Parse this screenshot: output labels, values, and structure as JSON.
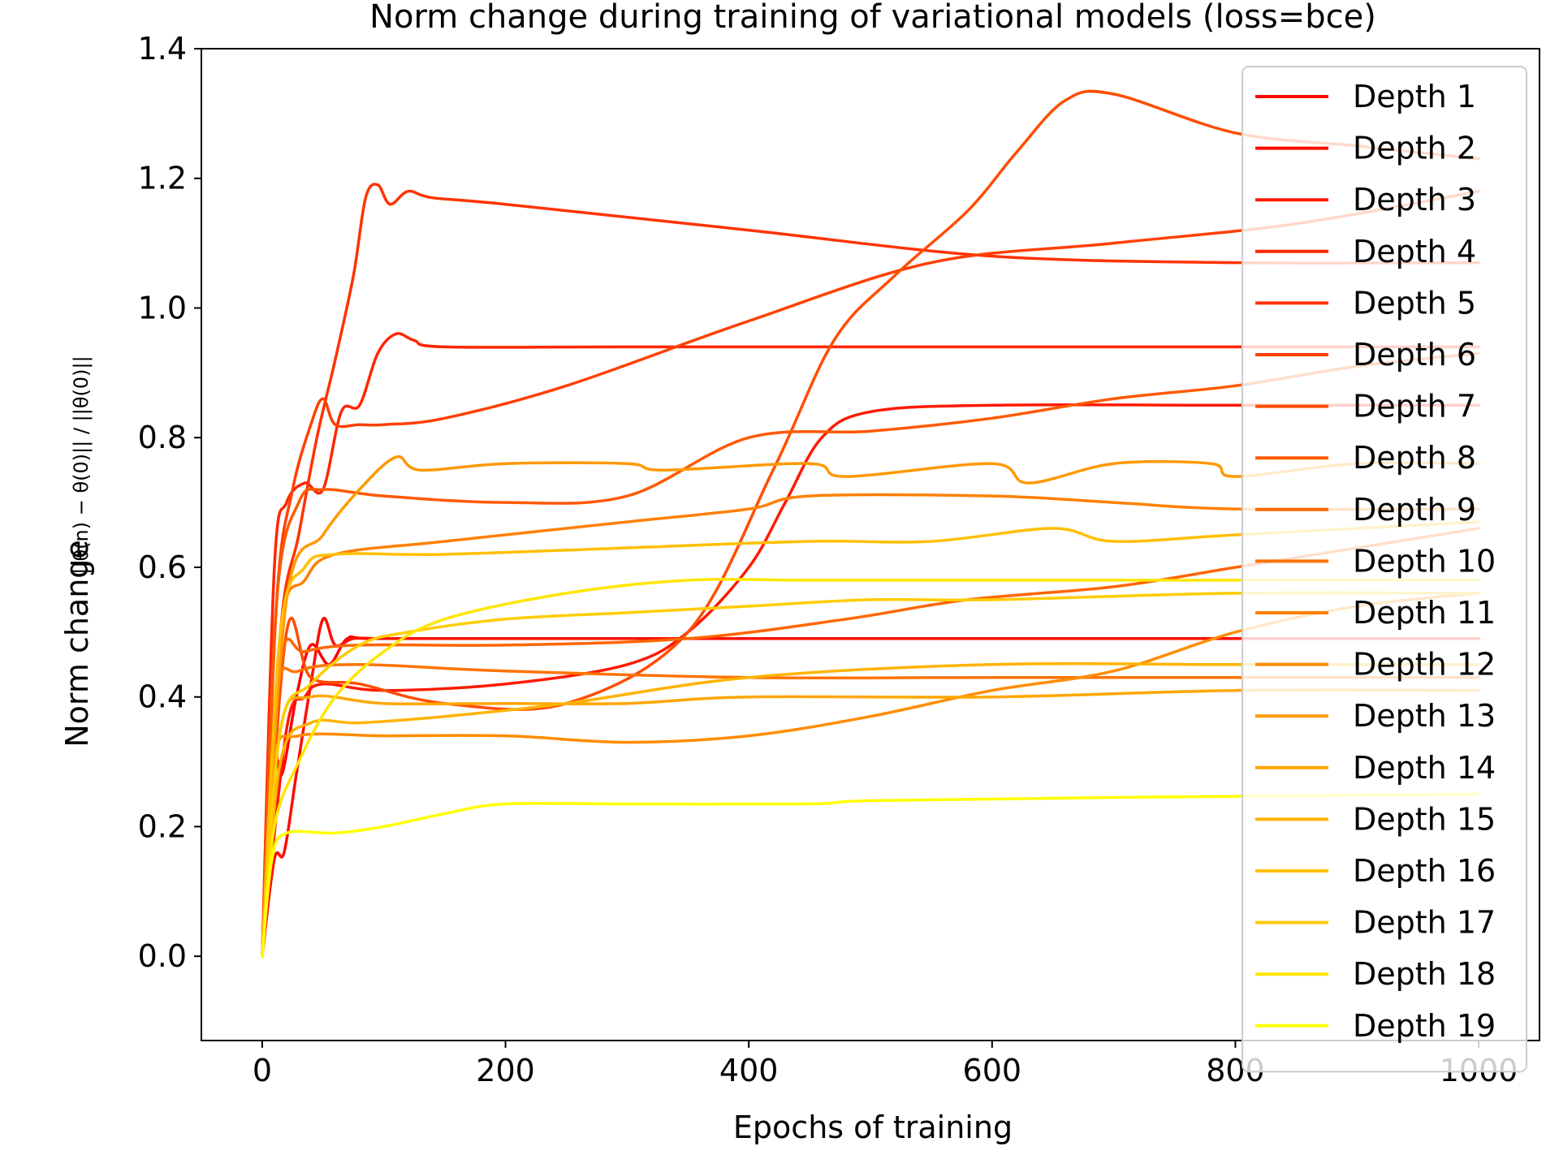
{
  "chart_data": {
    "type": "line",
    "title": "Norm change during training of variational models (loss=bce)",
    "xlabel": "Epochs of training",
    "ylabel": "Norm change",
    "ylabel_formula": "||θ(n) − θ(0)|| / ||θ(0)||",
    "xlim": [
      -50,
      1050
    ],
    "ylim": [
      -0.13,
      1.4
    ],
    "x_ticks": [
      "0",
      "200",
      "400",
      "600",
      "800",
      "1000"
    ],
    "y_ticks": [
      "0.0",
      "0.2",
      "0.4",
      "0.6",
      "0.8",
      "1.0",
      "1.2",
      "1.4"
    ],
    "legend_position": "right",
    "series": [
      {
        "name": "Depth 1",
        "color": "#ff0000",
        "points": [
          [
            0,
            0
          ],
          [
            8,
            0.32
          ],
          [
            16,
            0.28
          ],
          [
            28,
            0.4
          ],
          [
            40,
            0.48
          ],
          [
            55,
            0.45
          ],
          [
            70,
            0.49
          ],
          [
            90,
            0.49
          ],
          [
            200,
            0.49
          ],
          [
            400,
            0.49
          ],
          [
            600,
            0.49
          ],
          [
            800,
            0.49
          ],
          [
            1000,
            0.49
          ]
        ]
      },
      {
        "name": "Depth 2",
        "color": "#ff0d00",
        "points": [
          [
            0,
            0
          ],
          [
            10,
            0.15
          ],
          [
            18,
            0.16
          ],
          [
            28,
            0.28
          ],
          [
            40,
            0.42
          ],
          [
            50,
            0.52
          ],
          [
            60,
            0.48
          ],
          [
            75,
            0.49
          ],
          [
            100,
            0.49
          ],
          [
            150,
            0.49
          ],
          [
            250,
            0.49
          ],
          [
            400,
            0.49
          ],
          [
            600,
            0.49
          ],
          [
            800,
            0.49
          ],
          [
            1000,
            0.49
          ]
        ]
      },
      {
        "name": "Depth 3",
        "color": "#ff1a00",
        "points": [
          [
            0,
            0
          ],
          [
            20,
            0.35
          ],
          [
            35,
            0.4
          ],
          [
            50,
            0.42
          ],
          [
            100,
            0.41
          ],
          [
            200,
            0.42
          ],
          [
            300,
            0.45
          ],
          [
            350,
            0.5
          ],
          [
            400,
            0.6
          ],
          [
            430,
            0.7
          ],
          [
            460,
            0.8
          ],
          [
            500,
            0.84
          ],
          [
            600,
            0.85
          ],
          [
            800,
            0.85
          ],
          [
            1000,
            0.85
          ]
        ]
      },
      {
        "name": "Depth 4",
        "color": "#ff2600",
        "points": [
          [
            0,
            0
          ],
          [
            10,
            0.6
          ],
          [
            20,
            0.7
          ],
          [
            35,
            0.73
          ],
          [
            50,
            0.72
          ],
          [
            65,
            0.84
          ],
          [
            80,
            0.85
          ],
          [
            95,
            0.93
          ],
          [
            110,
            0.96
          ],
          [
            125,
            0.95
          ],
          [
            150,
            0.94
          ],
          [
            300,
            0.94
          ],
          [
            600,
            0.94
          ],
          [
            800,
            0.94
          ],
          [
            1000,
            0.94
          ]
        ]
      },
      {
        "name": "Depth 5",
        "color": "#ff3300",
        "points": [
          [
            0,
            0
          ],
          [
            15,
            0.5
          ],
          [
            30,
            0.65
          ],
          [
            45,
            0.8
          ],
          [
            60,
            0.92
          ],
          [
            75,
            1.05
          ],
          [
            85,
            1.17
          ],
          [
            95,
            1.19
          ],
          [
            105,
            1.16
          ],
          [
            120,
            1.18
          ],
          [
            140,
            1.17
          ],
          [
            200,
            1.16
          ],
          [
            400,
            1.12
          ],
          [
            600,
            1.08
          ],
          [
            800,
            1.07
          ],
          [
            1000,
            1.07
          ]
        ]
      },
      {
        "name": "Depth 6",
        "color": "#ff4000",
        "points": [
          [
            0,
            0
          ],
          [
            12,
            0.55
          ],
          [
            25,
            0.72
          ],
          [
            40,
            0.82
          ],
          [
            50,
            0.86
          ],
          [
            60,
            0.82
          ],
          [
            80,
            0.82
          ],
          [
            100,
            0.82
          ],
          [
            150,
            0.83
          ],
          [
            250,
            0.88
          ],
          [
            400,
            0.98
          ],
          [
            550,
            1.07
          ],
          [
            700,
            1.1
          ],
          [
            850,
            1.13
          ],
          [
            1000,
            1.18
          ]
        ]
      },
      {
        "name": "Depth 7",
        "color": "#ff4d00",
        "points": [
          [
            0,
            0
          ],
          [
            20,
            0.5
          ],
          [
            40,
            0.43
          ],
          [
            80,
            0.42
          ],
          [
            150,
            0.39
          ],
          [
            250,
            0.39
          ],
          [
            350,
            0.5
          ],
          [
            420,
            0.75
          ],
          [
            470,
            0.95
          ],
          [
            520,
            1.05
          ],
          [
            580,
            1.15
          ],
          [
            620,
            1.24
          ],
          [
            660,
            1.32
          ],
          [
            700,
            1.33
          ],
          [
            800,
            1.27
          ],
          [
            900,
            1.25
          ],
          [
            1000,
            1.23
          ]
        ]
      },
      {
        "name": "Depth 8",
        "color": "#ff5900",
        "points": [
          [
            0,
            0
          ],
          [
            12,
            0.55
          ],
          [
            30,
            0.7
          ],
          [
            50,
            0.72
          ],
          [
            100,
            0.71
          ],
          [
            200,
            0.7
          ],
          [
            300,
            0.71
          ],
          [
            400,
            0.8
          ],
          [
            500,
            0.81
          ],
          [
            600,
            0.83
          ],
          [
            700,
            0.86
          ],
          [
            800,
            0.88
          ],
          [
            900,
            0.91
          ],
          [
            1000,
            0.93
          ]
        ]
      },
      {
        "name": "Depth 9",
        "color": "#ff6600",
        "points": [
          [
            0,
            0
          ],
          [
            15,
            0.45
          ],
          [
            35,
            0.47
          ],
          [
            80,
            0.48
          ],
          [
            200,
            0.48
          ],
          [
            350,
            0.49
          ],
          [
            480,
            0.52
          ],
          [
            580,
            0.55
          ],
          [
            700,
            0.57
          ],
          [
            800,
            0.6
          ],
          [
            900,
            0.63
          ],
          [
            1000,
            0.66
          ]
        ]
      },
      {
        "name": "Depth 10",
        "color": "#ff7300",
        "points": [
          [
            0,
            0
          ],
          [
            12,
            0.4
          ],
          [
            30,
            0.44
          ],
          [
            80,
            0.45
          ],
          [
            200,
            0.44
          ],
          [
            400,
            0.43
          ],
          [
            600,
            0.43
          ],
          [
            800,
            0.43
          ],
          [
            1000,
            0.43
          ]
        ]
      },
      {
        "name": "Depth 11",
        "color": "#ff8000",
        "points": [
          [
            0,
            0
          ],
          [
            15,
            0.5
          ],
          [
            35,
            0.58
          ],
          [
            60,
            0.62
          ],
          [
            150,
            0.64
          ],
          [
            300,
            0.67
          ],
          [
            400,
            0.69
          ],
          [
            450,
            0.71
          ],
          [
            600,
            0.71
          ],
          [
            700,
            0.7
          ],
          [
            800,
            0.69
          ],
          [
            1000,
            0.69
          ]
        ]
      },
      {
        "name": "Depth 12",
        "color": "#ff8c00",
        "points": [
          [
            0,
            0
          ],
          [
            10,
            0.3
          ],
          [
            30,
            0.34
          ],
          [
            100,
            0.34
          ],
          [
            200,
            0.34
          ],
          [
            300,
            0.33
          ],
          [
            400,
            0.34
          ],
          [
            500,
            0.37
          ],
          [
            600,
            0.41
          ],
          [
            700,
            0.44
          ],
          [
            800,
            0.5
          ],
          [
            900,
            0.54
          ],
          [
            1000,
            0.56
          ]
        ]
      },
      {
        "name": "Depth 13",
        "color": "#ff9900",
        "points": [
          [
            0,
            0
          ],
          [
            20,
            0.55
          ],
          [
            50,
            0.65
          ],
          [
            80,
            0.72
          ],
          [
            110,
            0.77
          ],
          [
            130,
            0.75
          ],
          [
            200,
            0.76
          ],
          [
            300,
            0.76
          ],
          [
            330,
            0.75
          ],
          [
            450,
            0.76
          ],
          [
            480,
            0.74
          ],
          [
            600,
            0.76
          ],
          [
            630,
            0.73
          ],
          [
            700,
            0.76
          ],
          [
            780,
            0.76
          ],
          [
            800,
            0.74
          ],
          [
            900,
            0.76
          ],
          [
            1000,
            0.76
          ]
        ]
      },
      {
        "name": "Depth 14",
        "color": "#ffa600",
        "points": [
          [
            0,
            0
          ],
          [
            15,
            0.35
          ],
          [
            40,
            0.4
          ],
          [
            100,
            0.39
          ],
          [
            200,
            0.39
          ],
          [
            300,
            0.39
          ],
          [
            400,
            0.4
          ],
          [
            600,
            0.4
          ],
          [
            800,
            0.41
          ],
          [
            1000,
            0.41
          ]
        ]
      },
      {
        "name": "Depth 15",
        "color": "#ffb300",
        "points": [
          [
            0,
            0
          ],
          [
            15,
            0.3
          ],
          [
            40,
            0.36
          ],
          [
            80,
            0.36
          ],
          [
            150,
            0.37
          ],
          [
            250,
            0.39
          ],
          [
            400,
            0.43
          ],
          [
            600,
            0.45
          ],
          [
            800,
            0.45
          ],
          [
            1000,
            0.45
          ]
        ]
      },
      {
        "name": "Depth 16",
        "color": "#ffbf00",
        "points": [
          [
            0,
            0
          ],
          [
            15,
            0.5
          ],
          [
            35,
            0.6
          ],
          [
            60,
            0.62
          ],
          [
            150,
            0.62
          ],
          [
            300,
            0.63
          ],
          [
            450,
            0.64
          ],
          [
            550,
            0.64
          ],
          [
            650,
            0.66
          ],
          [
            700,
            0.64
          ],
          [
            800,
            0.65
          ],
          [
            1000,
            0.67
          ]
        ]
      },
      {
        "name": "Depth 17",
        "color": "#ffcc00",
        "points": [
          [
            0,
            0
          ],
          [
            15,
            0.35
          ],
          [
            40,
            0.42
          ],
          [
            80,
            0.48
          ],
          [
            120,
            0.5
          ],
          [
            200,
            0.52
          ],
          [
            300,
            0.53
          ],
          [
            400,
            0.54
          ],
          [
            500,
            0.55
          ],
          [
            600,
            0.55
          ],
          [
            800,
            0.56
          ],
          [
            1000,
            0.56
          ]
        ]
      },
      {
        "name": "Depth 18",
        "color": "#ffe600",
        "points": [
          [
            0,
            0
          ],
          [
            10,
            0.2
          ],
          [
            30,
            0.3
          ],
          [
            60,
            0.4
          ],
          [
            100,
            0.47
          ],
          [
            150,
            0.52
          ],
          [
            250,
            0.56
          ],
          [
            350,
            0.58
          ],
          [
            450,
            0.58
          ],
          [
            550,
            0.58
          ],
          [
            650,
            0.58
          ],
          [
            800,
            0.58
          ],
          [
            1000,
            0.58
          ]
        ]
      },
      {
        "name": "Depth 19",
        "color": "#ffff00",
        "points": [
          [
            0,
            0
          ],
          [
            8,
            0.15
          ],
          [
            20,
            0.19
          ],
          [
            60,
            0.19
          ],
          [
            100,
            0.2
          ],
          [
            150,
            0.22
          ],
          [
            200,
            0.235
          ],
          [
            300,
            0.235
          ],
          [
            450,
            0.235
          ],
          [
            500,
            0.24
          ],
          [
            700,
            0.245
          ],
          [
            1000,
            0.25
          ]
        ]
      }
    ]
  }
}
